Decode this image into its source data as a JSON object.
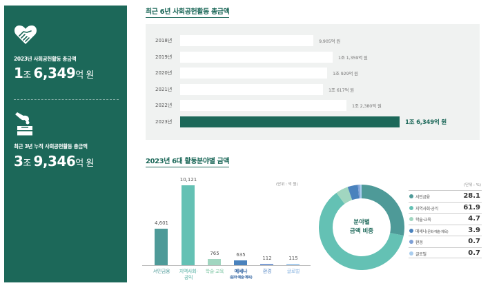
{
  "left_panel": {
    "block1": {
      "icon": "heart-handshake-icon",
      "label": "2023년 사회공헌활동 총금액",
      "value_parts": {
        "n1": "1",
        "u1": "조 ",
        "n2": "6,349",
        "u2": "억 원"
      }
    },
    "block2": {
      "icon": "donation-box-icon",
      "label": "최근 3년 누적 사회공헌활동 총금액",
      "value_parts": {
        "n1": "3",
        "u1": "조 ",
        "n2": "9,346",
        "u2": "억 원"
      }
    }
  },
  "sections": {
    "yearly_title": "최근 6년 사회공헌활동 총금액",
    "category_title": "2023년 6대 활동분야별 금액"
  },
  "column_chart": {
    "unit": "(단위 : 억 원)",
    "sub_label": "(문화·예술·체육)"
  },
  "donut": {
    "center_line1": "분야별",
    "center_line2": "금액 비중",
    "unit": "(단위 : %)"
  },
  "legend_items": [
    {
      "label": "서민금융",
      "value": "28.1",
      "color": "#4e9a98"
    },
    {
      "label": "지역사회·공익",
      "value": "61.9",
      "color": "#64c1b4"
    },
    {
      "label": "학술·교육",
      "value": "4.7",
      "color": "#a1d6c0"
    },
    {
      "label": "메세나",
      "sub": "(문화·예술·체육)",
      "value": "3.9",
      "color": "#4a82bd"
    },
    {
      "label": "환경",
      "value": "0.7",
      "color": "#7d9fd6"
    },
    {
      "label": "글로벌",
      "value": "0.7",
      "color": "#a9cdee"
    }
  ],
  "chart_data": [
    {
      "type": "bar",
      "orientation": "horizontal",
      "title": "최근 6년 사회공헌활동 총금액",
      "categories": [
        "2018년",
        "2019년",
        "2020년",
        "2021년",
        "2022년",
        "2023년"
      ],
      "values": [
        9905,
        11359,
        10929,
        10617,
        12380,
        16349
      ],
      "value_labels": [
        "9,905억 원",
        "1조 1,359억 원",
        "1조 929억 원",
        "1조 617억 원",
        "1조 2,380억 원",
        "1조 6,349억 원"
      ],
      "unit": "억 원",
      "highlight": "2023년"
    },
    {
      "type": "bar",
      "title": "2023년 6대 활동분야별 금액",
      "categories": [
        "서민금융",
        "지역사회·공익",
        "학술·교육",
        "메세나(문화·예술·체육)",
        "환경",
        "글로벌"
      ],
      "values": [
        4601,
        10121,
        765,
        635,
        112,
        115
      ],
      "value_labels": [
        "4,601",
        "10,121",
        "765",
        "635",
        "112",
        "115"
      ],
      "colors": [
        "#4e9a98",
        "#64c1b4",
        "#a1d6c0",
        "#4a82bd",
        "#7d9fd6",
        "#a9cdee"
      ],
      "unit": "(단위 : 억 원)"
    },
    {
      "type": "pie",
      "subtype": "donut",
      "title": "분야별 금액 비중",
      "categories": [
        "서민금융",
        "지역사회·공익",
        "학술·교육",
        "메세나(문화·예술·체육)",
        "환경",
        "글로벌"
      ],
      "values": [
        28.1,
        61.9,
        4.7,
        3.9,
        0.7,
        0.7
      ],
      "colors": [
        "#4e9a98",
        "#64c1b4",
        "#a1d6c0",
        "#4a82bd",
        "#7d9fd6",
        "#a9cdee"
      ],
      "unit": "(단위 : %)"
    }
  ]
}
